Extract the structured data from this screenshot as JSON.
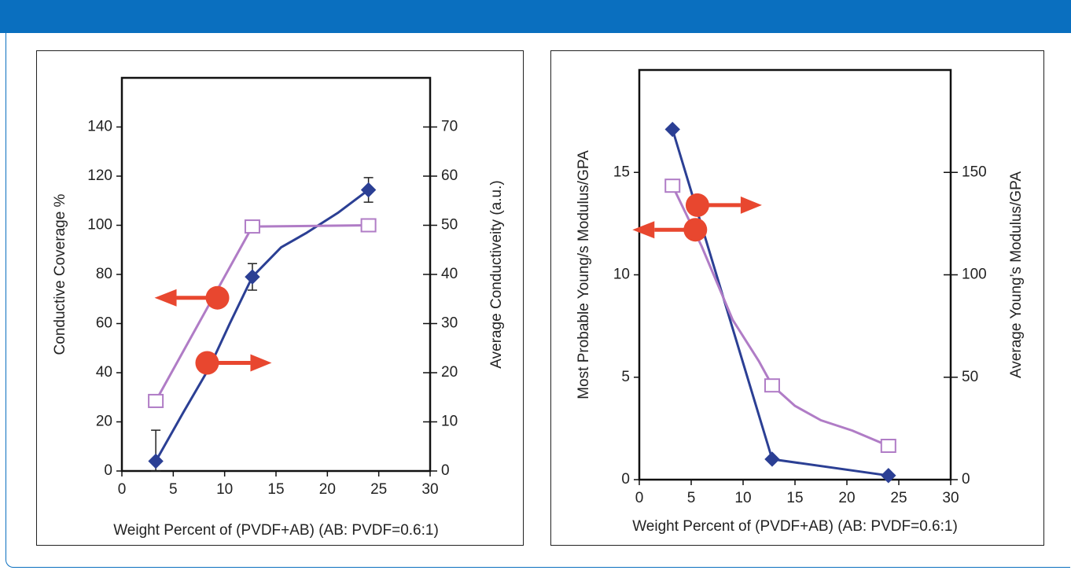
{
  "colors": {
    "header": "#0a6fbf",
    "series_blue": "#2b3f94",
    "series_purple": "#b07cc6",
    "arrow": "#e8472f"
  },
  "chart_data": [
    {
      "type": "line",
      "xlabel": "Weight Percent of (PVDF+AB) (AB: PVDF=0.6:1)",
      "ylabel": "Conductive Coverage %",
      "y2label": "Average Conductiveity (a.u.)",
      "xlim": [
        0,
        30
      ],
      "ylim": [
        0,
        160
      ],
      "y2lim": [
        0,
        80
      ],
      "xticks": [
        "0",
        "5",
        "10",
        "15",
        "20",
        "25",
        "30"
      ],
      "yticks": [
        "0",
        "20",
        "40",
        "60",
        "80",
        "100",
        "120",
        "140"
      ],
      "y2ticks": [
        "0",
        "10",
        "20",
        "30",
        "40",
        "50",
        "60",
        "70"
      ],
      "series": [
        {
          "axis": "y2",
          "color": "#2b3f94",
          "marker": "diamond",
          "x": [
            3.3,
            12.7,
            24.0
          ],
          "values": [
            2,
            39.5,
            57.2
          ],
          "error": [
            6.3,
            2.7,
            2.5
          ],
          "smooth": [
            [
              3.3,
              2
            ],
            [
              6,
              12
            ],
            [
              8.5,
              21
            ],
            [
              10.5,
              30
            ],
            [
              12.7,
              39.5
            ],
            [
              15.5,
              45.5
            ],
            [
              18,
              48.5
            ],
            [
              21,
              52.5
            ],
            [
              24,
              57.2
            ]
          ]
        },
        {
          "axis": "y",
          "color": "#b07cc6",
          "marker": "square",
          "x": [
            3.3,
            12.7,
            24.0
          ],
          "values": [
            28.5,
            99.5,
            100
          ]
        }
      ],
      "arrows": [
        {
          "direction": "left",
          "x": 9.3,
          "y": 70.5
        },
        {
          "direction": "right",
          "x": 8.3,
          "y": 44
        }
      ]
    },
    {
      "type": "line",
      "xlabel": "Weight Percent of (PVDF+AB) (AB: PVDF=0.6:1)",
      "ylabel": "Most Probable Young/s Modulus/GPA",
      "y2label": "Average Young’s Modulus/GPA",
      "xlim": [
        0,
        30
      ],
      "ylim": [
        0,
        20
      ],
      "y2lim": [
        0,
        200
      ],
      "xticks": [
        "0",
        "5",
        "10",
        "15",
        "20",
        "25",
        "30"
      ],
      "yticks": [
        "0",
        "5",
        "10",
        "15"
      ],
      "y2ticks": [
        "0",
        "50",
        "100",
        "150"
      ],
      "series": [
        {
          "axis": "y",
          "color": "#2b3f94",
          "marker": "diamond",
          "x": [
            3.2,
            12.8,
            24.0
          ],
          "values": [
            17.1,
            1.0,
            0.2
          ]
        },
        {
          "axis": "y2",
          "color": "#b07cc6",
          "marker": "square",
          "x": [
            3.2,
            12.8,
            24.0
          ],
          "values": [
            143.5,
            46,
            16.5
          ],
          "smooth": [
            [
              3.2,
              143.5
            ],
            [
              6,
              114
            ],
            [
              9,
              78
            ],
            [
              11.5,
              58
            ],
            [
              12.8,
              46
            ],
            [
              15,
              36
            ],
            [
              17.5,
              29
            ],
            [
              20.5,
              24
            ],
            [
              24,
              16.5
            ]
          ]
        }
      ],
      "arrows": [
        {
          "direction": "right",
          "x": 5.6,
          "y2": 134
        },
        {
          "direction": "left",
          "x": 5.4,
          "y2": 122
        }
      ]
    }
  ]
}
